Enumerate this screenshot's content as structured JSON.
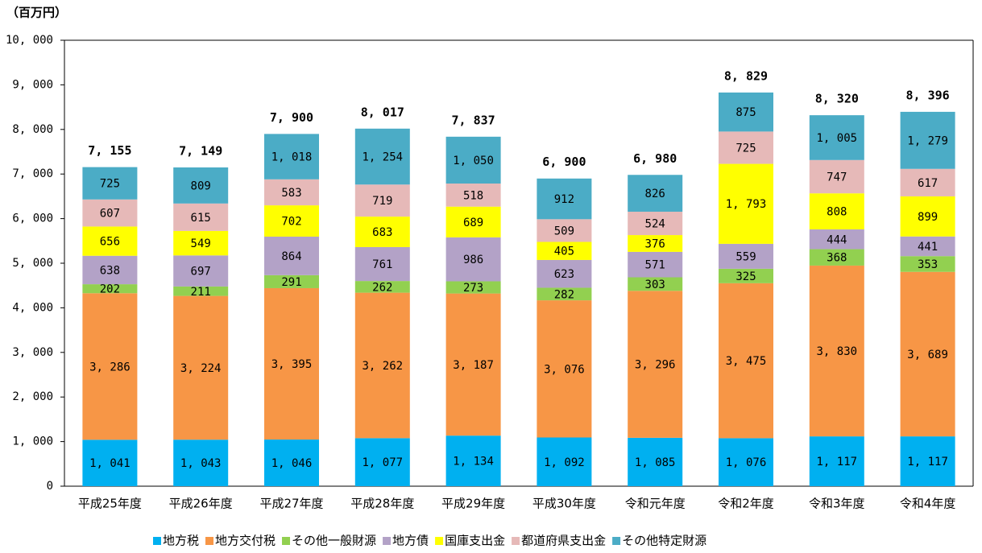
{
  "chart_data": {
    "type": "stacked_bar",
    "unit": "（百万円）",
    "categories": [
      "平成25年度",
      "平成26年度",
      "平成27年度",
      "平成28年度",
      "平成29年度",
      "平成30年度",
      "令和元年度",
      "令和2年度",
      "令和3年度",
      "令和4年度"
    ],
    "series": [
      {
        "name": "地方税",
        "color": "#00b0f0",
        "values": [
          1041,
          1043,
          1046,
          1077,
          1134,
          1092,
          1085,
          1076,
          1117,
          1117
        ],
        "value_labels": [
          "1, 041",
          "1, 043",
          "1, 046",
          "1, 077",
          "1, 134",
          "1, 092",
          "1, 085",
          "1, 076",
          "1, 117",
          "1, 117"
        ]
      },
      {
        "name": "地方交付税",
        "color": "#f79646",
        "values": [
          3286,
          3224,
          3395,
          3262,
          3187,
          3076,
          3296,
          3475,
          3830,
          3689
        ],
        "value_labels": [
          "3, 286",
          "3, 224",
          "3, 395",
          "3, 262",
          "3, 187",
          "3, 076",
          "3, 296",
          "3, 475",
          "3, 830",
          "3, 689"
        ]
      },
      {
        "name": "その他一般財源",
        "color": "#92d050",
        "values": [
          202,
          211,
          291,
          262,
          273,
          282,
          303,
          325,
          368,
          353
        ]
      },
      {
        "name": "地方債",
        "color": "#b3a2c7",
        "values": [
          638,
          697,
          864,
          761,
          986,
          623,
          571,
          559,
          444,
          441
        ]
      },
      {
        "name": "国庫支出金",
        "color": "#ffff00",
        "values": [
          656,
          549,
          702,
          683,
          689,
          405,
          376,
          1793,
          808,
          899
        ],
        "value_labels": [
          "656",
          "549",
          "702",
          "683",
          "689",
          "405",
          "376",
          "1, 793",
          "808",
          "899"
        ]
      },
      {
        "name": "都道府県支出金",
        "color": "#e6b9b8",
        "values": [
          607,
          615,
          583,
          719,
          518,
          509,
          524,
          725,
          747,
          617
        ]
      },
      {
        "name": "その他特定財源",
        "color": "#4bacc6",
        "values": [
          725,
          809,
          1018,
          1254,
          1050,
          912,
          826,
          875,
          1005,
          1279
        ],
        "value_labels": [
          "725",
          "809",
          "1, 018",
          "1, 254",
          "1, 050",
          "912",
          "826",
          "875",
          "1, 005",
          "1, 279"
        ]
      }
    ],
    "totals": {
      "values": [
        7155,
        7149,
        7900,
        8017,
        7837,
        6900,
        6980,
        8829,
        8320,
        8396
      ],
      "value_labels": [
        "7, 155",
        "7, 149",
        "7, 900",
        "8, 017",
        "7, 837",
        "6, 900",
        "6, 980",
        "8, 829",
        "8, 320",
        "8, 396"
      ]
    },
    "ylim": [
      0,
      10000
    ],
    "yticks": [
      0,
      {
        "value": 1000,
        "label": "1, 000"
      },
      {
        "value": 2000,
        "label": "2, 000"
      },
      {
        "value": 3000,
        "label": "3, 000"
      },
      {
        "value": 4000,
        "label": "4, 000"
      },
      {
        "value": 5000,
        "label": "5, 000"
      },
      {
        "value": 6000,
        "label": "6, 000"
      },
      {
        "value": 7000,
        "label": "7, 000"
      },
      {
        "value": 8000,
        "label": "8, 000"
      },
      {
        "value": 9000,
        "label": "9, 000"
      },
      {
        "value": 10000,
        "label": "10, 000"
      }
    ],
    "grid": true,
    "legend": "bottom"
  }
}
